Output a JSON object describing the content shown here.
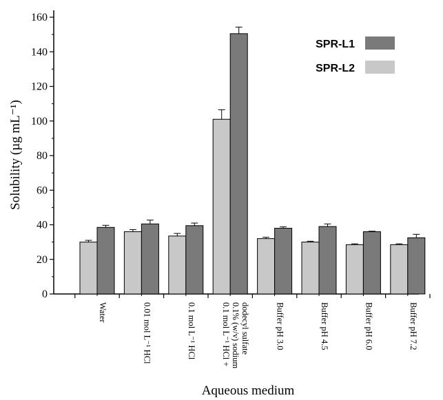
{
  "chart_data": {
    "type": "bar",
    "categories": [
      [
        "Water"
      ],
      [
        "0.01 mol L⁻¹ HCl"
      ],
      [
        "0.1 mol L⁻¹ HCl"
      ],
      [
        "0.1 mol L⁻¹ HCl +",
        "0.1% (w/v) sodium",
        "dodecyl sulfate"
      ],
      [
        "Buffer pH 3.0"
      ],
      [
        "Buffer pH 4.5"
      ],
      [
        "Buffer pH 6.0"
      ],
      [
        "Buffer pH 7.2"
      ]
    ],
    "series": [
      {
        "name": "SPR-L2",
        "color": "#c8c8c8",
        "values": [
          30,
          36,
          33.5,
          101,
          32,
          30,
          28.5,
          28.5
        ],
        "errors": [
          1,
          1.2,
          1.5,
          5.5,
          0.8,
          0.5,
          0.5,
          0.5
        ]
      },
      {
        "name": "SPR-L1",
        "color": "#7a7a7a",
        "values": [
          38.5,
          40.5,
          39.5,
          150.5,
          38,
          39,
          36,
          32.5
        ],
        "errors": [
          1.2,
          2.2,
          1.5,
          3.8,
          0.8,
          1.5,
          0.3,
          2
        ]
      }
    ],
    "title": "",
    "xlabel": "Aqueous medium",
    "ylabel": "Solubility (µg mL⁻¹)",
    "ylim": [
      0,
      160
    ],
    "yticks": [
      0,
      20,
      40,
      60,
      80,
      100,
      120,
      140,
      160
    ],
    "grid": false,
    "legend_position": "top-right",
    "legend_order": [
      "SPR-L1",
      "SPR-L2"
    ]
  }
}
